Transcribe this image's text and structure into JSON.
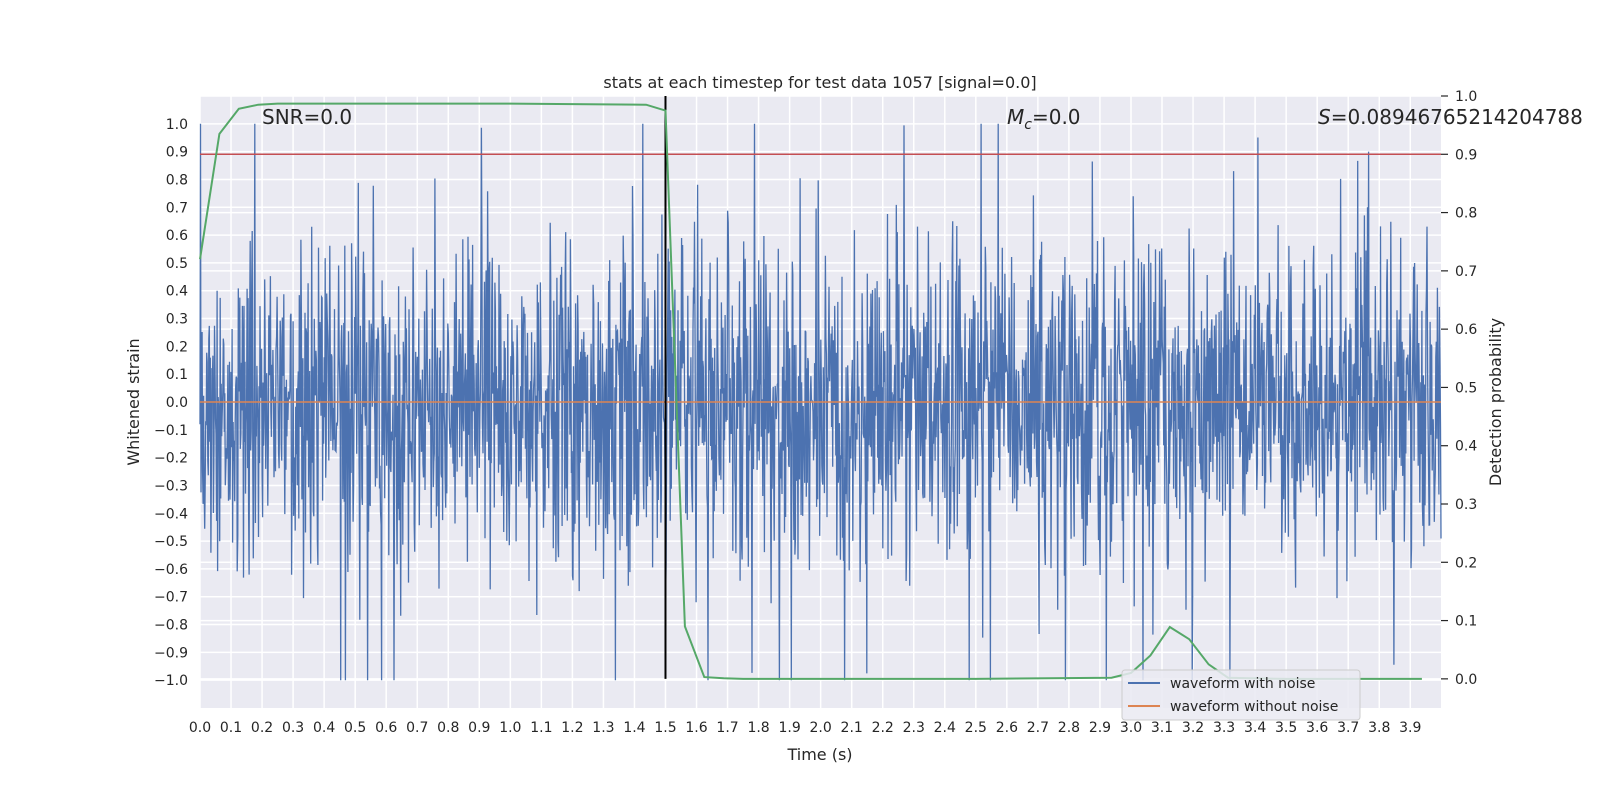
{
  "chart_data": {
    "type": "line",
    "title": "stats at each timestep for test data 1057 [signal=0.0]",
    "xlabel": "Time (s)",
    "ylabel": "Whitened strain",
    "y2label": "Detection probability",
    "xlim": [
      0.0,
      3.999
    ],
    "ylim": [
      -1.1,
      1.1
    ],
    "y2lim": [
      -0.05,
      1.0
    ],
    "x_ticks": [
      "0.0",
      "0.1",
      "0.2",
      "0.3",
      "0.4",
      "0.5",
      "0.6",
      "0.7",
      "0.8",
      "0.9",
      "1.0",
      "1.1",
      "1.2",
      "1.3",
      "1.4",
      "1.5",
      "1.6",
      "1.7",
      "1.8",
      "1.9",
      "2.0",
      "2.1",
      "2.2",
      "2.3",
      "2.4",
      "2.5",
      "2.6",
      "2.7",
      "2.8",
      "2.9",
      "3.0",
      "3.1",
      "3.2",
      "3.3",
      "3.4",
      "3.5",
      "3.6",
      "3.7",
      "3.8",
      "3.9"
    ],
    "y_ticks": [
      "1.0",
      "0.9",
      "0.8",
      "0.7",
      "0.6",
      "0.5",
      "0.4",
      "0.3",
      "0.2",
      "0.1",
      "0.0",
      "−0.1",
      "−0.2",
      "−0.3",
      "−0.4",
      "−0.5",
      "−0.6",
      "−0.7",
      "−0.8",
      "−0.9",
      "−1.0"
    ],
    "y2_ticks": [
      "1.0",
      "0.9",
      "0.8",
      "0.7",
      "0.6",
      "0.5",
      "0.4",
      "0.3",
      "0.2",
      "0.1",
      "0.0"
    ],
    "annotations": {
      "snr": "SNR=0.0",
      "mc_symbol": "M",
      "mc_sub": "c",
      "mc_value": "=0.0",
      "s_symbol": "S",
      "s_value": "=0.08946765214204788"
    },
    "threshold": {
      "y2": 0.9,
      "color": "#c44e52"
    },
    "marker_time": 1.5,
    "noise_amplitude": 1.0,
    "series": [
      {
        "name": "waveform with noise",
        "color": "#4c72b0"
      },
      {
        "name": "waveform without noise",
        "color": "#dd8452",
        "value": 0.0
      },
      {
        "name": "detection probability",
        "color": "#55a868",
        "x": [
          0.0,
          0.0625,
          0.125,
          0.1875,
          0.25,
          0.3125,
          0.375,
          0.4375,
          0.5,
          1.0,
          1.4375,
          1.5,
          1.5625,
          1.625,
          1.6875,
          1.75,
          2.0,
          2.5,
          2.9375,
          3.0,
          3.0625,
          3.125,
          3.1875,
          3.25,
          3.3125,
          3.5,
          3.75,
          3.9375
        ],
        "values": [
          0.72,
          0.935,
          0.978,
          0.985,
          0.987,
          0.987,
          0.987,
          0.987,
          0.987,
          0.987,
          0.985,
          0.975,
          0.09,
          0.003,
          0.001,
          0.0,
          0.0,
          0.0,
          0.002,
          0.01,
          0.04,
          0.089,
          0.068,
          0.025,
          0.002,
          0.0,
          0.0,
          0.0
        ]
      }
    ],
    "legend": {
      "location": "lower-right",
      "entries": [
        {
          "label": "waveform with noise",
          "color": "#4c72b0"
        },
        {
          "label": "waveform without noise",
          "color": "#dd8452"
        }
      ]
    }
  }
}
